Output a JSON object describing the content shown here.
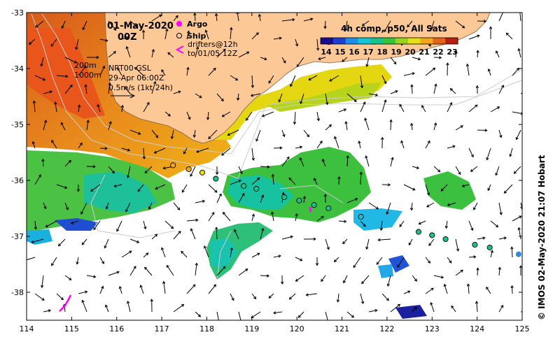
{
  "map": {
    "title_date": "01-May-2020",
    "title_time": "00Z",
    "composite_label": "4h comp, p50, All Sats",
    "colorbar_ticks": [
      "14",
      "15",
      "16",
      "17",
      "18",
      "19",
      "20",
      "21",
      "22",
      "23"
    ],
    "colorbar_colors": [
      "#1a0a8c",
      "#1f3fd0",
      "#1b8fe8",
      "#12c6d6",
      "#16c48a",
      "#37c43a",
      "#9ad21c",
      "#e4e011",
      "#f4a819",
      "#e8631a",
      "#b52010"
    ],
    "legend": {
      "argo_label": "Argo",
      "ship_label": "Ship",
      "drifters_line1": "drifters@12h",
      "drifters_line2": "to 01/05 12Z",
      "argo_color": "#ff00ff",
      "drifter_color": "#ff00ff"
    },
    "annotations": {
      "isobath_200": "200m",
      "isobath_1000": "1000m",
      "currents_source": "NRT00 GSL",
      "currents_date": "29-Apr 06:00Z",
      "scale_text": "0.5m/s (1kt 24h)"
    },
    "credit": "© IMOS 02-May-2020 21:07 Hobart",
    "x_ticks": [
      "114",
      "115",
      "116",
      "117",
      "118",
      "119",
      "120",
      "121",
      "122",
      "123",
      "124",
      "125"
    ],
    "y_ticks": [
      "-33",
      "-34",
      "-35",
      "-36",
      "-37",
      "-38"
    ],
    "land_color": "#fcc896",
    "axis_extent": {
      "lon": [
        114,
        125
      ],
      "lat": [
        -38.5,
        -33
      ]
    },
    "ship_stations": [
      {
        "lon": 117.25,
        "lat": -35.73,
        "t": 21.5
      },
      {
        "lon": 117.6,
        "lat": -35.8,
        "t": 21.0
      },
      {
        "lon": 117.9,
        "lat": -35.86,
        "t": 20.0
      },
      {
        "lon": 118.2,
        "lat": -35.97,
        "t": 17.5
      },
      {
        "lon": 118.82,
        "lat": -36.1,
        "t": 17.8
      },
      {
        "lon": 119.1,
        "lat": -36.15,
        "t": 17.8
      },
      {
        "lon": 119.72,
        "lat": -36.3,
        "t": 17.8
      },
      {
        "lon": 120.05,
        "lat": -36.36,
        "t": 17.8
      },
      {
        "lon": 120.38,
        "lat": -36.44,
        "t": 17.8
      },
      {
        "lon": 120.7,
        "lat": -36.5,
        "t": 17.8
      },
      {
        "lon": 121.42,
        "lat": -36.65,
        "t": 17.0
      },
      {
        "lon": 122.7,
        "lat": -36.92,
        "t": 17.8
      },
      {
        "lon": 123.0,
        "lat": -36.98,
        "t": 17.8
      },
      {
        "lon": 123.3,
        "lat": -37.05,
        "t": 17.8
      },
      {
        "lon": 123.95,
        "lat": -37.15,
        "t": 17.8
      },
      {
        "lon": 124.28,
        "lat": -37.2,
        "t": 17.8
      }
    ],
    "argo_floats": [
      {
        "lon": 124.92,
        "lat": -37.32
      }
    ]
  }
}
